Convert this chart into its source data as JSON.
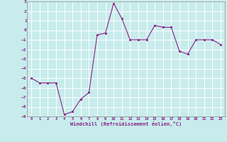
{
  "x": [
    0,
    1,
    2,
    3,
    4,
    5,
    6,
    7,
    8,
    9,
    10,
    11,
    12,
    13,
    14,
    15,
    16,
    17,
    18,
    19,
    20,
    21,
    22,
    23
  ],
  "y": [
    -5.0,
    -5.5,
    -5.5,
    -5.5,
    -8.8,
    -8.5,
    -7.2,
    -6.5,
    -0.5,
    -0.3,
    2.8,
    1.2,
    -1.0,
    -1.0,
    -1.0,
    0.5,
    0.3,
    0.3,
    -2.2,
    -2.5,
    -1.0,
    -1.0,
    -1.0,
    -1.5
  ],
  "xlim": [
    -0.5,
    23.5
  ],
  "ylim": [
    -9,
    3
  ],
  "xticks": [
    0,
    1,
    2,
    3,
    4,
    5,
    6,
    7,
    8,
    9,
    10,
    11,
    12,
    13,
    14,
    15,
    16,
    17,
    18,
    19,
    20,
    21,
    22,
    23
  ],
  "yticks": [
    3,
    2,
    1,
    0,
    -1,
    -2,
    -3,
    -4,
    -5,
    -6,
    -7,
    -8,
    -9
  ],
  "xlabel": "Windchill (Refroidissement éolien,°C)",
  "line_color": "#882288",
  "marker_color": "#882288",
  "bg_color": "#c8ecec",
  "grid_color": "#aadddd",
  "font_color": "#882288",
  "font_family": "monospace"
}
